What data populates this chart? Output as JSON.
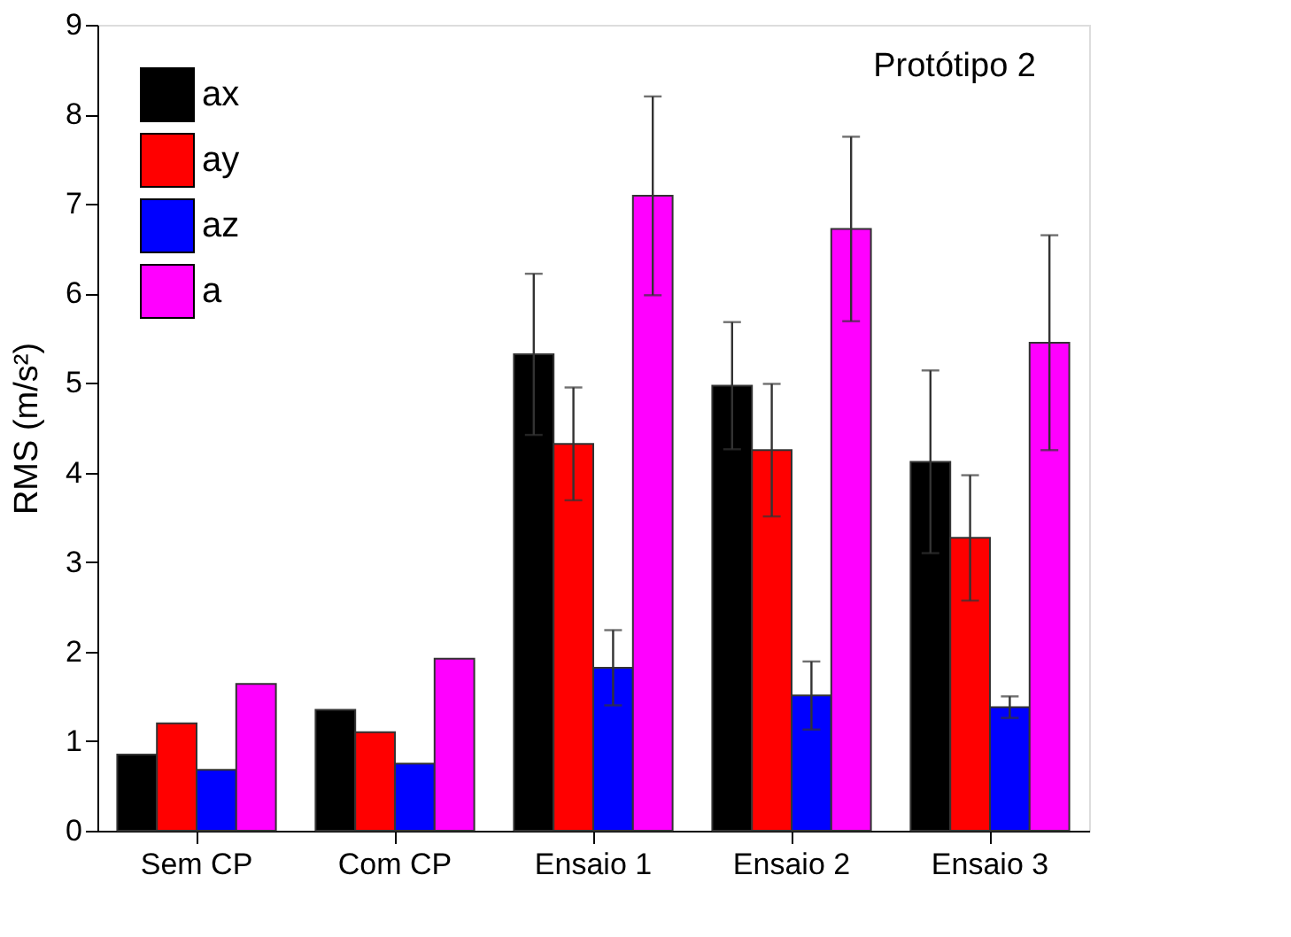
{
  "chart_data": {
    "type": "bar",
    "ylabel": "RMS (m/s²)",
    "categories": [
      "Sem CP",
      "Com CP",
      "Ensaio 1",
      "Ensaio 2",
      "Ensaio 3"
    ],
    "series": [
      {
        "name": "ax",
        "color": "#000000",
        "values": [
          0.85,
          1.35,
          5.32,
          4.97,
          4.12
        ],
        "errors": [
          null,
          null,
          0.9,
          0.71,
          1.02
        ]
      },
      {
        "name": "ay",
        "color": "#ff0000",
        "values": [
          1.2,
          1.1,
          4.32,
          4.25,
          3.27
        ],
        "errors": [
          null,
          null,
          0.63,
          0.74,
          0.7
        ]
      },
      {
        "name": "az",
        "color": "#0000ff",
        "values": [
          0.68,
          0.75,
          1.82,
          1.51,
          1.38
        ],
        "errors": [
          null,
          null,
          0.42,
          0.38,
          0.12
        ]
      },
      {
        "name": "a",
        "color": "#ff00ff",
        "values": [
          1.64,
          1.92,
          7.09,
          6.72,
          5.45
        ],
        "errors": [
          null,
          null,
          1.11,
          1.03,
          1.2
        ]
      }
    ],
    "ylim": [
      0,
      9
    ],
    "yticks": [
      0,
      1,
      2,
      3,
      4,
      5,
      6,
      7,
      8,
      9
    ],
    "grid": false,
    "legend": "top left",
    "annotations": [
      "Protótipo 2"
    ]
  }
}
